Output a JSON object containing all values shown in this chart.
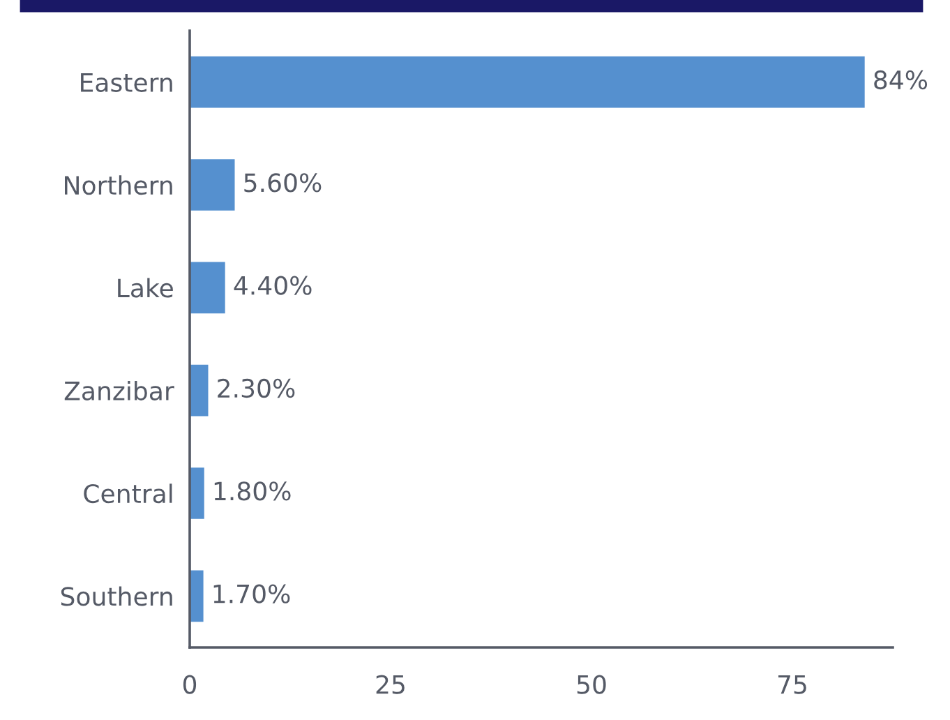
{
  "chart_data": {
    "type": "bar",
    "orientation": "horizontal",
    "categories": [
      "Eastern",
      "Northern",
      "Lake",
      "Zanzibar",
      "Central",
      "Southern"
    ],
    "values": [
      84,
      5.6,
      4.4,
      2.3,
      1.8,
      1.7
    ],
    "value_labels": [
      "84%",
      "5.60%",
      "4.40%",
      "2.30%",
      "1.80%",
      "1.70%"
    ],
    "color": "#5590cf",
    "xlim": [
      0,
      87.5
    ],
    "xticks": [
      0,
      25,
      50,
      75
    ],
    "grid": false,
    "legend": false
  }
}
